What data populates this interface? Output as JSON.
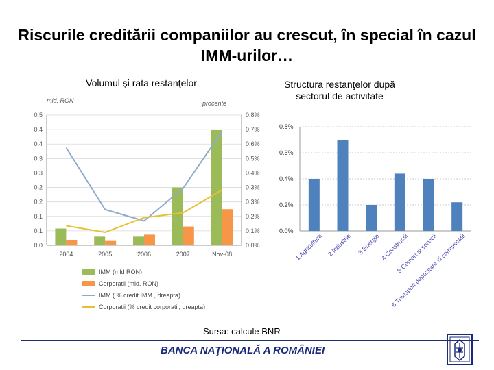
{
  "title": "Riscurile creditării companiilor au crescut, în special în cazul IMM-urilor…",
  "chart_data": [
    {
      "type": "bar",
      "title": "Volumul şi rata restanţelor",
      "left_unit": "mld. RON",
      "right_unit": "procente",
      "categories": [
        "2004",
        "2005",
        "2006",
        "2007",
        "Nov-08"
      ],
      "ylim_left": [
        0,
        0.45
      ],
      "yticks_left": [
        "0.0",
        "0.1",
        "0.1",
        "0.2",
        "0.2",
        "0.3",
        "0.3",
        "0.4",
        "0.4",
        "0.5"
      ],
      "ylim_right": [
        0,
        0.8
      ],
      "yticks_right": [
        "0.0%",
        "0.1%",
        "0.2%",
        "0.3%",
        "0.3%",
        "0.4%",
        "0.5%",
        "0.6%",
        "0.7%",
        "0.8%"
      ],
      "series": [
        {
          "name": "IMM (mld RON)",
          "kind": "bar",
          "axis": "left",
          "color": "#9bbb59",
          "values": [
            0.058,
            0.03,
            0.03,
            0.2,
            0.4
          ]
        },
        {
          "name": "Corporatii (mld. RON)",
          "kind": "bar",
          "axis": "left",
          "color": "#f79646",
          "values": [
            0.018,
            0.015,
            0.037,
            0.065,
            0.125
          ]
        },
        {
          "name": "IMM ( % credit IMM , dreapta)",
          "kind": "line",
          "axis": "right",
          "color": "#8eaacc",
          "values": [
            0.6,
            0.22,
            0.15,
            0.35,
            0.7
          ]
        },
        {
          "name": "Corporatii (% credit corporatii, dreapta)",
          "kind": "line",
          "axis": "right",
          "color": "#e8c132",
          "values": [
            0.12,
            0.08,
            0.17,
            0.2,
            0.34
          ]
        }
      ],
      "grid": true,
      "legend": "bottom"
    },
    {
      "type": "bar",
      "title": "Structura restanţelor după sectorul de activitate",
      "categories": [
        "1 Agricultura",
        "2 Industrie",
        "3 Energie",
        "4 Constructii",
        "5 Comert si servicii",
        "6 Transport depozitare si comunicatii"
      ],
      "values": [
        0.4,
        0.7,
        0.2,
        0.44,
        0.4,
        0.22
      ],
      "ylim": [
        0,
        0.8
      ],
      "yticks": [
        "0.0%",
        "0.2%",
        "0.4%",
        "0.6%",
        "0.8%"
      ],
      "color": "#4f81bd",
      "grid": true
    }
  ],
  "source": "Sursa: calcule BNR",
  "footer": "BANCA NAŢIONALĂ A ROMÂNIEI"
}
